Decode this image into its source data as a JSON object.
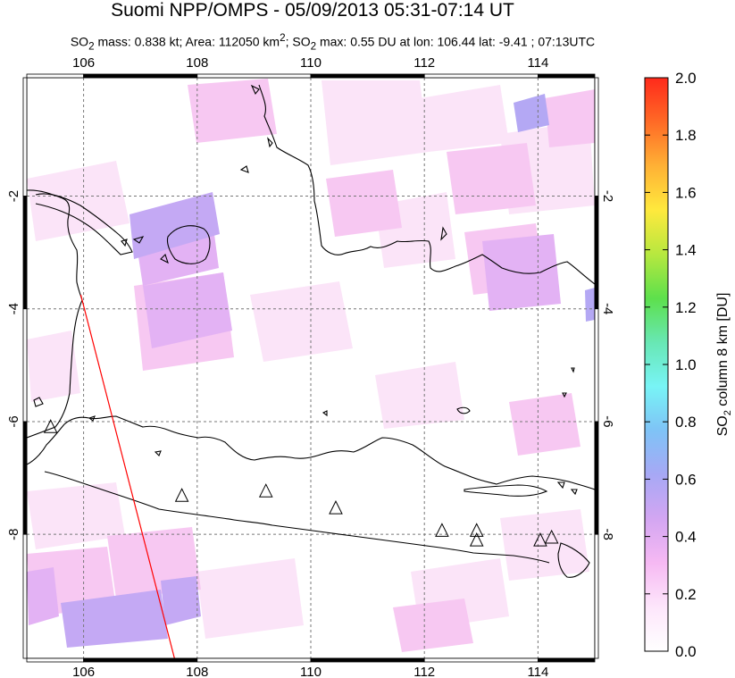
{
  "title": "Suomi NPP/OMPS - 05/09/2013 05:31-07:14 UT",
  "subtitle": {
    "mass_prefix": "SO",
    "mass_sub": "2",
    "mass_text": " mass: 0.838 kt; Area: 112050 km",
    "area_sup": "2",
    "max_prefix": "; SO",
    "max_sub": "2",
    "max_text": " max: 0.55 DU at lon: 106.44 lat: -9.41 ; 07:13UTC"
  },
  "map": {
    "lon_range": [
      105,
      115
    ],
    "lat_range": [
      -10.2,
      0.1
    ],
    "lon_ticks": [
      "106",
      "108",
      "110",
      "112",
      "114"
    ],
    "lat_ticks": [
      "-2",
      "-4",
      "-6",
      "-8"
    ],
    "grid": "dashed",
    "volcanoes": [
      {
        "lon": 105.42,
        "lat": -6.1
      },
      {
        "lon": 107.73,
        "lat": -7.32
      },
      {
        "lon": 109.21,
        "lat": -7.24
      },
      {
        "lon": 110.44,
        "lat": -7.54
      },
      {
        "lon": 112.31,
        "lat": -7.94
      },
      {
        "lon": 112.92,
        "lat": -7.94
      },
      {
        "lon": 112.92,
        "lat": -8.11
      },
      {
        "lon": 114.04,
        "lat": -8.11
      },
      {
        "lon": 114.24,
        "lat": -8.06
      }
    ],
    "track": {
      "from": {
        "lon": 105.95,
        "lat": -3.75
      },
      "to": {
        "lon": 107.6,
        "lat": -10.2
      },
      "color": "#ff0000"
    }
  },
  "colorbar": {
    "ticks": [
      "0.0",
      "0.2",
      "0.4",
      "0.6",
      "0.8",
      "1.0",
      "1.2",
      "1.4",
      "1.6",
      "1.8",
      "2.0"
    ],
    "label_prefix": "SO",
    "label_sub": "2",
    "label_text": " column 8 km [DU]",
    "colors": [
      "#ffffff",
      "#fde6fb",
      "#f6b9f3",
      "#d3a6f2",
      "#a7a8f5",
      "#7fc3f6",
      "#78f4f6",
      "#68e7b4",
      "#5de04c",
      "#b7e83f",
      "#ffe93d",
      "#ffb135",
      "#ff6a26",
      "#ff2a1b"
    ]
  }
}
